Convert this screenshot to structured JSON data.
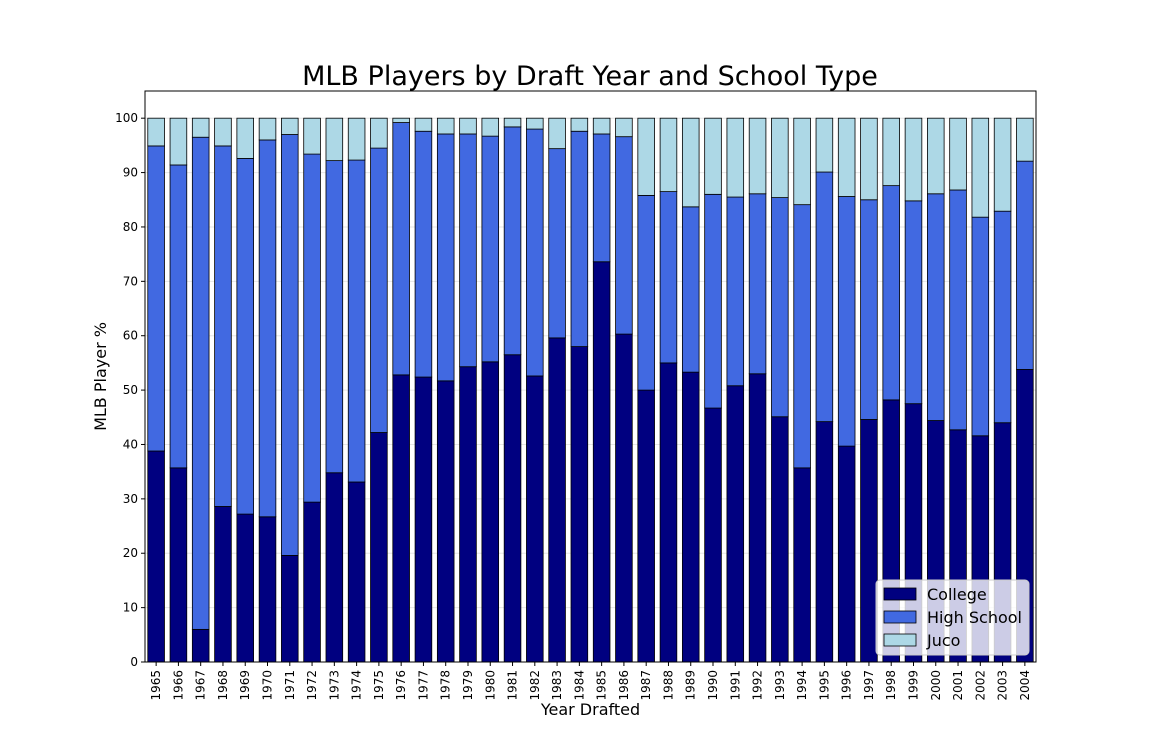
{
  "chart_data": {
    "type": "bar",
    "stacked": true,
    "percent": true,
    "title": "MLB Players by Draft Year and School Type",
    "xlabel": "Year Drafted",
    "ylabel": "MLB Player %",
    "ylim": [
      0,
      105
    ],
    "yticks": [
      0,
      10,
      20,
      30,
      40,
      50,
      60,
      70,
      80,
      90,
      100
    ],
    "grid": "horizontal",
    "legend": "bottom-right",
    "categories": [
      "1965",
      "1966",
      "1967",
      "1968",
      "1969",
      "1970",
      "1971",
      "1972",
      "1973",
      "1974",
      "1975",
      "1976",
      "1977",
      "1978",
      "1979",
      "1980",
      "1981",
      "1982",
      "1983",
      "1984",
      "1985",
      "1986",
      "1987",
      "1988",
      "1989",
      "1990",
      "1991",
      "1992",
      "1993",
      "1994",
      "1995",
      "1996",
      "1997",
      "1998",
      "1999",
      "2000",
      "2001",
      "2002",
      "2003",
      "2004"
    ],
    "series": [
      {
        "name": "College",
        "color": "#000080",
        "values": [
          38.8,
          35.7,
          6.0,
          28.6,
          27.2,
          26.7,
          19.6,
          29.4,
          34.8,
          33.1,
          42.2,
          52.8,
          52.4,
          51.7,
          54.3,
          55.2,
          56.5,
          52.6,
          59.6,
          58.0,
          73.6,
          60.3,
          50.0,
          55.0,
          53.3,
          46.7,
          50.8,
          53.0,
          45.1,
          35.7,
          44.2,
          39.7,
          44.6,
          48.2,
          47.5,
          44.4,
          42.7,
          41.6,
          44.0,
          53.8
        ]
      },
      {
        "name": "High School",
        "color": "#4169e1",
        "values": [
          56.1,
          55.7,
          90.5,
          66.3,
          65.4,
          69.3,
          77.4,
          64.0,
          57.4,
          59.2,
          52.3,
          46.4,
          45.2,
          45.4,
          42.8,
          41.5,
          41.9,
          45.4,
          34.8,
          39.6,
          23.5,
          36.3,
          35.8,
          31.5,
          30.4,
          39.3,
          34.7,
          33.1,
          40.3,
          48.4,
          45.9,
          45.9,
          40.4,
          39.4,
          37.3,
          41.7,
          44.1,
          40.2,
          38.9,
          38.3
        ]
      },
      {
        "name": "Juco",
        "color": "#add8e6",
        "values": [
          5.1,
          8.6,
          3.5,
          5.1,
          7.4,
          4.0,
          3.0,
          6.6,
          7.8,
          7.7,
          5.5,
          0.8,
          2.4,
          2.9,
          2.9,
          3.3,
          1.6,
          2.0,
          5.6,
          2.4,
          2.9,
          3.4,
          14.2,
          13.5,
          16.3,
          14.0,
          14.5,
          13.9,
          14.6,
          15.9,
          9.9,
          14.4,
          15.0,
          12.4,
          15.2,
          13.9,
          13.2,
          18.2,
          17.1,
          7.9
        ]
      }
    ]
  }
}
